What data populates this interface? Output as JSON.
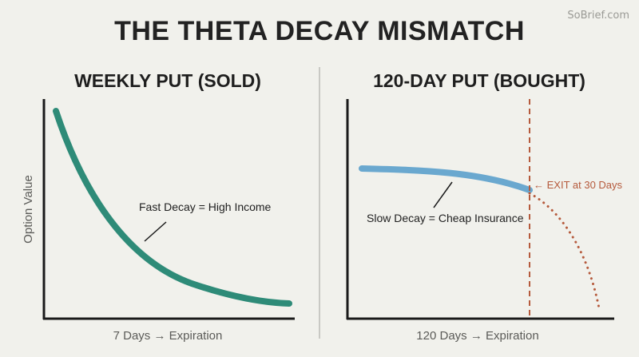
{
  "watermark": "SoBrief.com",
  "title": "THE THETA DECAY MISMATCH",
  "panels": [
    {
      "title": "WEEKLY PUT (SOLD)",
      "xlabel": "7 Days → Expiration",
      "ylabel": "Option Value",
      "annotation": "Fast Decay = High Income",
      "curve_color": "#2e8b78"
    },
    {
      "title": "120-DAY PUT (BOUGHT)",
      "xlabel": "120 Days → Expiration",
      "annotation": "Slow Decay = Cheap Insurance",
      "exit_label": "← EXIT at 30 Days",
      "curve_color": "#6aa8cf",
      "exit_color": "#b55a3c"
    }
  ]
}
